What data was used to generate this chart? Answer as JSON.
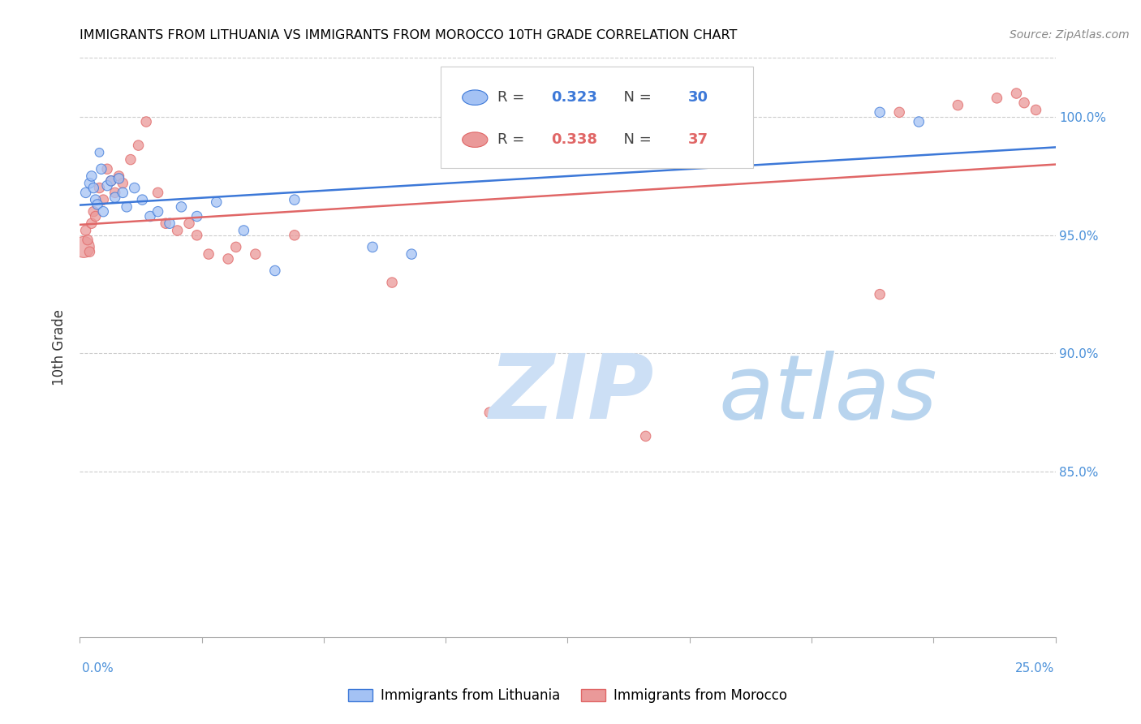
{
  "title": "IMMIGRANTS FROM LITHUANIA VS IMMIGRANTS FROM MOROCCO 10TH GRADE CORRELATION CHART",
  "source": "Source: ZipAtlas.com",
  "ylabel": "10th Grade",
  "x_range": [
    0.0,
    25.0
  ],
  "y_range": [
    78.0,
    102.5
  ],
  "legend_blue_r": "0.323",
  "legend_blue_n": "30",
  "legend_pink_r": "0.338",
  "legend_pink_n": "37",
  "blue_color": "#a4c2f4",
  "pink_color": "#ea9999",
  "blue_line_color": "#3c78d8",
  "pink_line_color": "#e06666",
  "grid_color": "#cccccc",
  "tick_color": "#4a90d9",
  "background_color": "#ffffff",
  "blue_scatter_x": [
    0.15,
    0.25,
    0.3,
    0.35,
    0.4,
    0.45,
    0.5,
    0.55,
    0.6,
    0.7,
    0.8,
    0.9,
    1.0,
    1.1,
    1.2,
    1.4,
    1.6,
    1.8,
    2.0,
    2.3,
    2.6,
    3.0,
    3.5,
    4.2,
    5.0,
    5.5,
    7.5,
    8.5,
    20.5,
    21.5
  ],
  "blue_scatter_y": [
    96.8,
    97.2,
    97.5,
    97.0,
    96.5,
    96.3,
    98.5,
    97.8,
    96.0,
    97.1,
    97.3,
    96.6,
    97.4,
    96.8,
    96.2,
    97.0,
    96.5,
    95.8,
    96.0,
    95.5,
    96.2,
    95.8,
    96.4,
    95.2,
    93.5,
    96.5,
    94.5,
    94.2,
    100.2,
    99.8
  ],
  "blue_scatter_size": [
    80,
    80,
    80,
    80,
    80,
    80,
    60,
    80,
    80,
    80,
    80,
    80,
    80,
    80,
    80,
    80,
    80,
    80,
    80,
    80,
    80,
    80,
    80,
    80,
    80,
    80,
    80,
    80,
    80,
    80
  ],
  "pink_scatter_x": [
    0.1,
    0.15,
    0.2,
    0.25,
    0.3,
    0.35,
    0.4,
    0.5,
    0.6,
    0.7,
    0.8,
    0.9,
    1.0,
    1.1,
    1.3,
    1.5,
    1.7,
    2.0,
    2.2,
    2.5,
    2.8,
    3.0,
    3.3,
    3.8,
    4.0,
    4.5,
    5.5,
    8.0,
    10.5,
    14.5,
    20.5,
    21.0,
    22.5,
    23.5,
    24.0,
    24.2,
    24.5
  ],
  "pink_scatter_y": [
    94.5,
    95.2,
    94.8,
    94.3,
    95.5,
    96.0,
    95.8,
    97.0,
    96.5,
    97.8,
    97.3,
    96.8,
    97.5,
    97.2,
    98.2,
    98.8,
    99.8,
    96.8,
    95.5,
    95.2,
    95.5,
    95.0,
    94.2,
    94.0,
    94.5,
    94.2,
    95.0,
    93.0,
    87.5,
    86.5,
    92.5,
    100.2,
    100.5,
    100.8,
    101.0,
    100.6,
    100.3
  ],
  "pink_scatter_size": [
    350,
    80,
    80,
    80,
    80,
    80,
    80,
    80,
    80,
    80,
    80,
    80,
    80,
    80,
    80,
    80,
    80,
    80,
    80,
    80,
    80,
    80,
    80,
    80,
    80,
    80,
    80,
    80,
    80,
    80,
    80,
    80,
    80,
    80,
    80,
    80,
    80
  ]
}
